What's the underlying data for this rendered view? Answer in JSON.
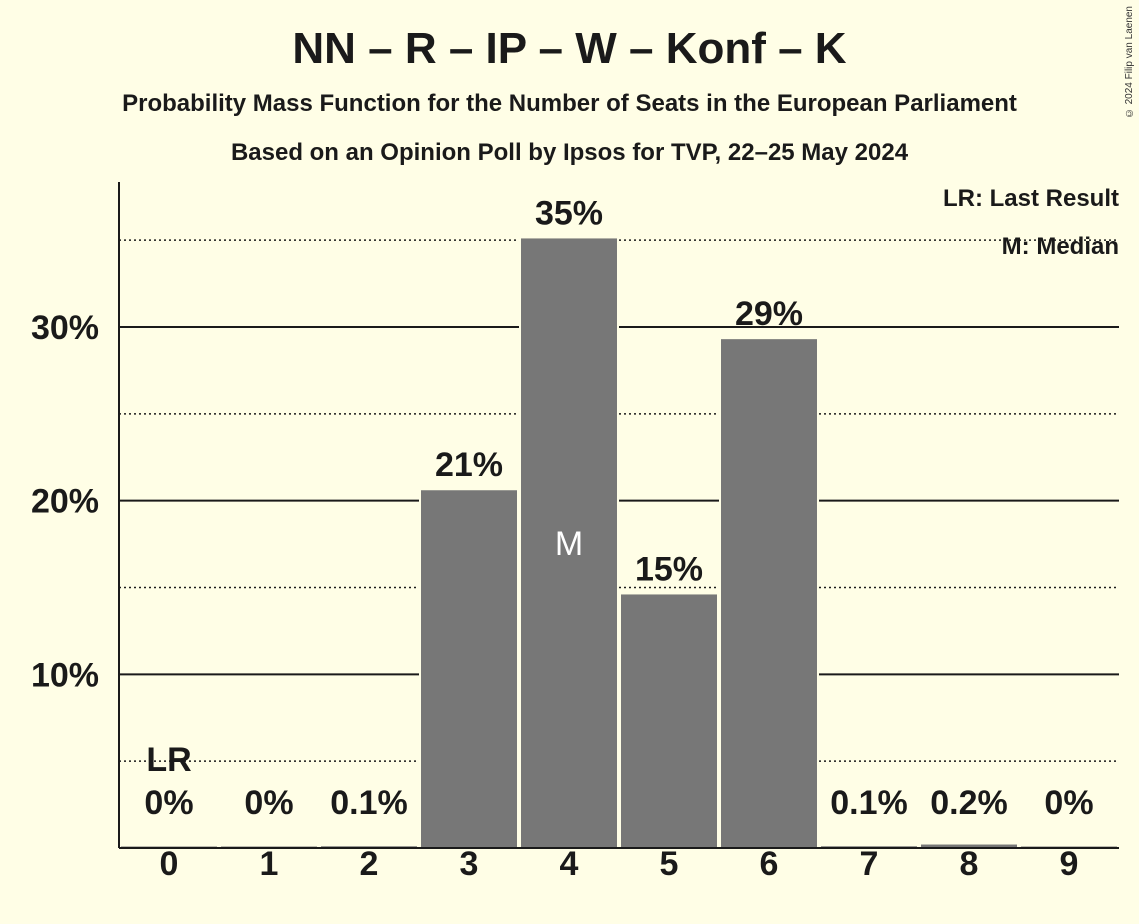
{
  "copyright": "© 2024 Filip van Laenen",
  "chart_data": {
    "type": "bar",
    "title": "NN – R – IP – W – Konf – K",
    "subtitle": "Probability Mass Function for the Number of Seats in the European Parliament",
    "subtitle2": "Based on an Opinion Poll by Ipsos for TVP, 22–25 May 2024",
    "categories": [
      "0",
      "1",
      "2",
      "3",
      "4",
      "5",
      "6",
      "7",
      "8",
      "9"
    ],
    "values": [
      0,
      0,
      0.1,
      20.6,
      35.1,
      14.6,
      29.3,
      0.1,
      0.2,
      0
    ],
    "value_labels": [
      "0%",
      "0%",
      "0.1%",
      "21%",
      "35%",
      "15%",
      "29%",
      "0.1%",
      "0.2%",
      "0%"
    ],
    "ylim": [
      0,
      38.5
    ],
    "y_major_ticks": [
      10,
      20,
      30
    ],
    "y_major_tick_labels": [
      "10%",
      "20%",
      "30%"
    ],
    "y_minor_ticks": [
      5,
      15,
      25,
      35
    ],
    "median_index": 4,
    "median_marker": "M",
    "last_result_index": 0,
    "last_result_marker": "LR",
    "legend": {
      "placement": "top-right",
      "items": [
        "LR: Last Result",
        "M: Median"
      ]
    },
    "bar_color": "#777777",
    "background_color": "#FFFEE6"
  }
}
